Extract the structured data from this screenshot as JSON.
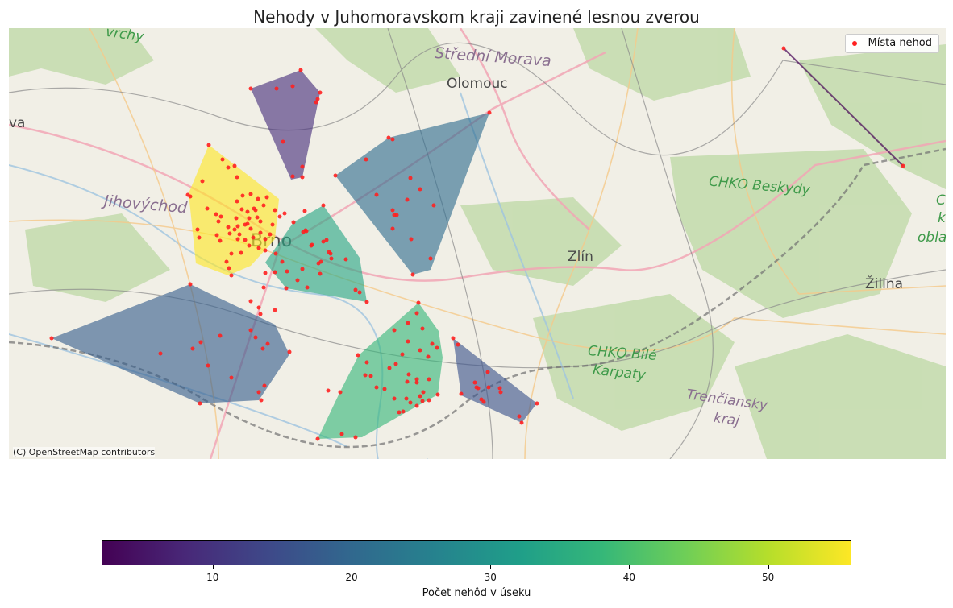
{
  "title": "Nehody v Juhomoravskom kraji zavinené lesnou zverou",
  "legend": {
    "label": "Místa nehod",
    "marker_color": "#ff2020"
  },
  "attribution": "(C) OpenStreetMap contributors",
  "basemap_labels": [
    {
      "text": "Střední Morava",
      "style": "purple"
    },
    {
      "text": "Olomouc",
      "style": "city"
    },
    {
      "text": "CHKO Beskydy",
      "style": "green"
    },
    {
      "text": "Jihovýchod",
      "style": "purple"
    },
    {
      "text": "Brno",
      "style": "city"
    },
    {
      "text": "Zlín",
      "style": "city"
    },
    {
      "text": "Žilina",
      "style": "city"
    },
    {
      "text": "CHKO Bílé",
      "style": "green"
    },
    {
      "text": "Karpaty",
      "style": "green"
    },
    {
      "text": "Trenčiansky",
      "style": "purple"
    },
    {
      "text": "kraj",
      "style": "purple"
    },
    {
      "text": "vrchy",
      "style": "green"
    },
    {
      "text": "va",
      "style": "city"
    },
    {
      "text": "CH",
      "style": "green"
    },
    {
      "text": "k",
      "style": "green"
    },
    {
      "text": "obla",
      "style": "green"
    }
  ],
  "colorbar": {
    "label": "Počet nehôd v úseku",
    "min": 2,
    "max": 56,
    "ticks": [
      10,
      20,
      30,
      40,
      50
    ],
    "colormap": "viridis",
    "colors": [
      "#440154",
      "#482878",
      "#3e4989",
      "#31688e",
      "#26828e",
      "#1f9e89",
      "#35b779",
      "#6ece58",
      "#b5de2b",
      "#fde725"
    ]
  },
  "regions": [
    {
      "id": "yellow-west-of-brno",
      "count": 56
    },
    {
      "id": "purple-north",
      "count": 9
    },
    {
      "id": "blue-northeast",
      "count": 21
    },
    {
      "id": "teal-brno",
      "count": 34
    },
    {
      "id": "blue-southwest",
      "count": 18
    },
    {
      "id": "green-southeast",
      "count": 38
    },
    {
      "id": "blue-east",
      "count": 16
    },
    {
      "id": "line-far-northeast",
      "count": 2
    }
  ]
}
